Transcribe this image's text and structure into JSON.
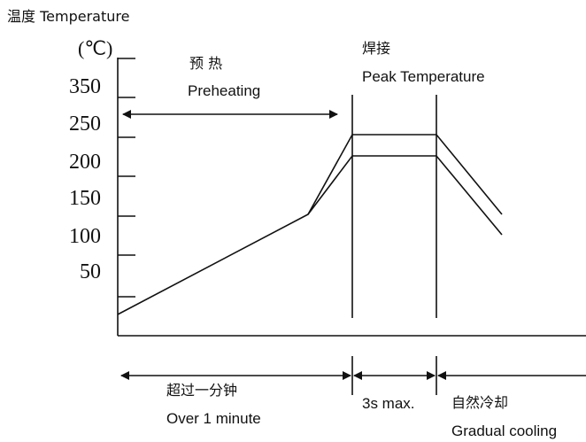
{
  "y_axis": {
    "title": "温度 Temperature",
    "unit": "(℃)",
    "ticks": [
      "350",
      "250",
      "200",
      "150",
      "100",
      "50"
    ]
  },
  "phases": {
    "preheat": {
      "label_cn": "预 热",
      "label_en": "Preheating"
    },
    "peak": {
      "label_cn": "焊接",
      "label_en": "Peak Temperature"
    }
  },
  "durations": {
    "over_minute": {
      "label_cn": "超过一分钟",
      "label_en": "Over 1 minute"
    },
    "peak_time": {
      "label": "3s max."
    },
    "cooling": {
      "label_cn": "自然冷却",
      "label_en": "Gradual cooling"
    }
  }
}
